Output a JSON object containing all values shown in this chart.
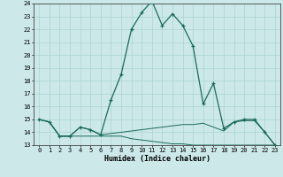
{
  "xlabel": "Humidex (Indice chaleur)",
  "bg_color": "#cce8e8",
  "grid_color": "#aad4d4",
  "line_color": "#1a6b5a",
  "x_values": [
    0,
    1,
    2,
    3,
    4,
    5,
    6,
    7,
    8,
    9,
    10,
    11,
    12,
    13,
    14,
    15,
    16,
    17,
    18,
    19,
    20,
    21,
    22,
    23
  ],
  "series1": [
    15.0,
    14.8,
    13.7,
    13.7,
    14.4,
    14.2,
    13.8,
    16.5,
    18.5,
    22.0,
    23.3,
    24.2,
    22.3,
    23.2,
    22.3,
    20.7,
    16.2,
    17.8,
    14.3,
    14.8,
    15.0,
    15.0,
    14.0,
    13.0
  ],
  "series2": [
    15.0,
    14.8,
    13.7,
    13.7,
    14.4,
    14.2,
    13.8,
    13.9,
    14.0,
    14.1,
    14.2,
    14.3,
    14.4,
    14.5,
    14.6,
    14.6,
    14.7,
    14.4,
    14.1,
    14.8,
    14.9,
    14.9,
    14.0,
    13.0
  ],
  "series3": [
    15.0,
    14.8,
    13.7,
    13.7,
    13.7,
    13.7,
    13.7,
    13.7,
    13.7,
    13.5,
    13.4,
    13.3,
    13.2,
    13.1,
    13.1,
    13.0,
    13.0,
    13.0,
    13.0,
    13.0,
    13.0,
    13.0,
    13.0,
    13.0
  ],
  "ylim_min": 13,
  "ylim_max": 24,
  "yticks": [
    13,
    14,
    15,
    16,
    17,
    18,
    19,
    20,
    21,
    22,
    23,
    24
  ],
  "xticks": [
    0,
    1,
    2,
    3,
    4,
    5,
    6,
    7,
    8,
    9,
    10,
    11,
    12,
    13,
    14,
    15,
    16,
    17,
    18,
    19,
    20,
    21,
    22,
    23
  ]
}
